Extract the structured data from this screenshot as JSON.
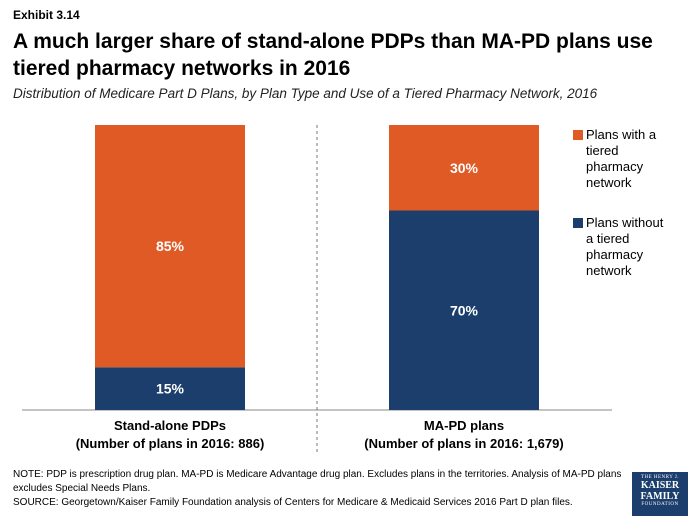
{
  "header": {
    "exhibit": "Exhibit 3.14",
    "title": "A much larger share of stand-alone PDPs than MA-PD plans use tiered pharmacy networks in 2016",
    "subtitle": "Distribution of Medicare Part D Plans, by Plan Type and Use of a Tiered Pharmacy Network, 2016"
  },
  "chart_data": {
    "type": "bar",
    "stacked": true,
    "categories": [
      "Stand-alone PDPs",
      "MA-PD plans"
    ],
    "category_sublabels": [
      "(Number of plans in 2016: 886)",
      "(Number of plans in 2016: 1,679)"
    ],
    "series": [
      {
        "name": "Plans without a tiered pharmacy network",
        "values": [
          15,
          70
        ],
        "labels": [
          "15%",
          "70%"
        ],
        "color": "#1b3e6c"
      },
      {
        "name": "Plans with a tiered pharmacy network",
        "values": [
          85,
          30
        ],
        "labels": [
          "85%",
          "30%"
        ],
        "color": "#e05a25"
      }
    ],
    "ylim": [
      0,
      100
    ],
    "grid": false,
    "legend_position": "right"
  },
  "legend": [
    {
      "lines": [
        "Plans with a",
        "tiered",
        "pharmacy",
        "network"
      ],
      "color": "#e05a25"
    },
    {
      "lines": [
        "Plans without",
        "a tiered",
        "pharmacy",
        "network"
      ],
      "color": "#1b3e6c"
    }
  ],
  "footnotes": {
    "note": "NOTE: PDP is prescription drug plan. MA-PD is Medicare Advantage drug plan. Excludes plans in the territories. Analysis of MA-PD plans excludes Special Needs Plans.",
    "source": "SOURCE: Georgetown/Kaiser Family Foundation analysis of Centers for Medicare & Medicaid Services 2016 Part D plan files."
  },
  "logo": {
    "line1": "THE HENRY J.",
    "line2": "KAISER",
    "line3": "FAMILY",
    "line4": "FOUNDATION"
  }
}
